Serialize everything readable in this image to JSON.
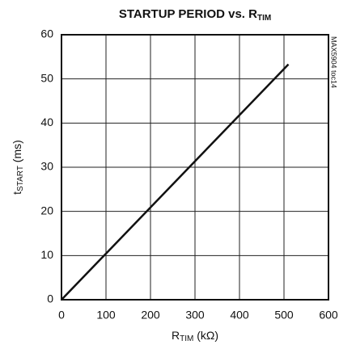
{
  "chart_data": {
    "type": "line",
    "title": [
      "STARTUP PERIOD vs. R",
      "TIM"
    ],
    "x_label": [
      "R",
      "TIM",
      " (kΩ)"
    ],
    "y_label": [
      "t",
      "START",
      " (ms)"
    ],
    "side_note": "MAX5904 toc14",
    "x": [
      0,
      510
    ],
    "series": [
      {
        "color": "#111111",
        "values": [
          0,
          53.3
        ]
      }
    ],
    "xlim": [
      0,
      600
    ],
    "xticks": [
      0,
      100,
      200,
      300,
      400,
      500,
      600
    ],
    "ylim": [
      0,
      60
    ],
    "yticks": [
      0,
      10,
      20,
      30,
      40,
      50,
      60
    ],
    "grid": true
  }
}
